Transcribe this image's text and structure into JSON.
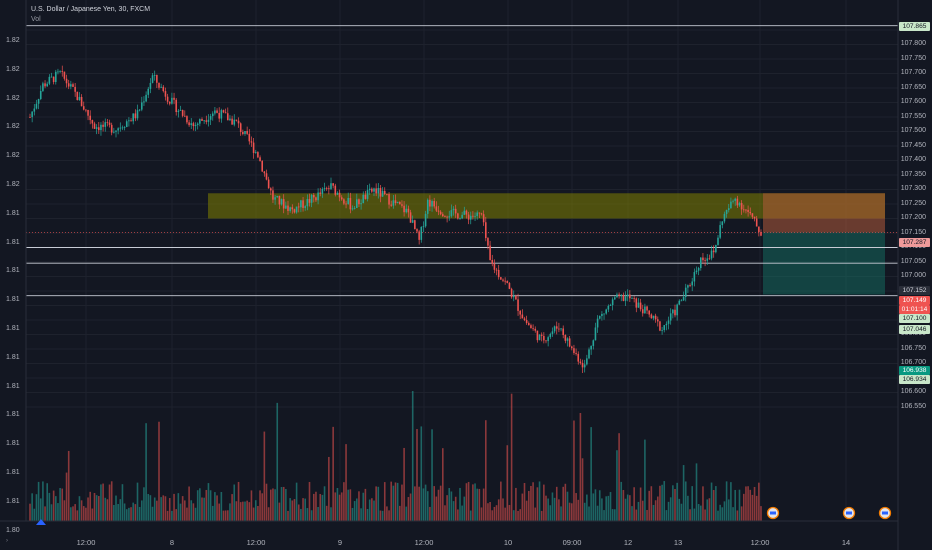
{
  "header": {
    "title": "U.S. Dollar / Japanese Yen, 30, FXCM",
    "volume_label": "Vol"
  },
  "left_axis": {
    "labels": [
      "1.82",
      "1.82",
      "1.82",
      "1.82",
      "1.82",
      "1.82",
      "1.81",
      "1.81",
      "1.81",
      "1.81",
      "1.81",
      "1.81",
      "1.81",
      "1.81",
      "1.81",
      "1.81",
      "1.81",
      "1.80"
    ]
  },
  "price_axis": {
    "labels": [
      "107.850",
      "107.800",
      "107.750",
      "107.700",
      "107.650",
      "107.600",
      "107.550",
      "107.500",
      "107.450",
      "107.400",
      "107.350",
      "107.300",
      "107.250",
      "107.200",
      "107.150",
      "107.100",
      "107.050",
      "107.000",
      "106.950",
      "106.900",
      "106.850",
      "106.800",
      "106.750",
      "106.700",
      "106.650",
      "106.600",
      "106.550"
    ]
  },
  "time_axis": {
    "labels": [
      "12:00",
      "8",
      "12:00",
      "9",
      "12:00",
      "10",
      "09:00",
      "12",
      "13",
      "12:00",
      "14"
    ]
  },
  "tags": [
    {
      "label": "107.865",
      "kind": "line"
    },
    {
      "label": "107.287",
      "kind": "zone"
    },
    {
      "label": "107.152",
      "kind": "current"
    },
    {
      "label": "107.149",
      "kind": "stop"
    },
    {
      "label": "01:01:14",
      "kind": "countdown"
    },
    {
      "label": "107.100",
      "kind": "line"
    },
    {
      "label": "107.046",
      "kind": "line"
    },
    {
      "label": "106.938",
      "kind": "target"
    },
    {
      "label": "106.934",
      "kind": "line"
    }
  ],
  "chart_data": {
    "type": "candlestick",
    "symbol": "USDJPY",
    "interval": "30",
    "y_range": [
      106.52,
      107.89
    ],
    "horizontal_levels": [
      107.865,
      107.1,
      107.046,
      106.934
    ],
    "zones": [
      {
        "kind": "supply",
        "from": 107.2,
        "to": 107.287
      },
      {
        "kind": "short-risk",
        "from": 107.152,
        "to": 107.287
      },
      {
        "kind": "short-reward",
        "from": 106.938,
        "to": 107.152
      }
    ],
    "close_path": [
      [
        0,
        107.55
      ],
      [
        6,
        107.66
      ],
      [
        14,
        107.7
      ],
      [
        22,
        107.62
      ],
      [
        30,
        107.52
      ],
      [
        40,
        107.51
      ],
      [
        50,
        107.56
      ],
      [
        57,
        107.69
      ],
      [
        66,
        107.6
      ],
      [
        76,
        107.52
      ],
      [
        86,
        107.57
      ],
      [
        96,
        107.53
      ],
      [
        106,
        107.42
      ],
      [
        113,
        107.27
      ],
      [
        122,
        107.23
      ],
      [
        132,
        107.27
      ],
      [
        140,
        107.31
      ],
      [
        150,
        107.24
      ],
      [
        160,
        107.3
      ],
      [
        168,
        107.26
      ],
      [
        176,
        107.22
      ],
      [
        181,
        107.12
      ],
      [
        185,
        107.26
      ],
      [
        193,
        107.22
      ],
      [
        204,
        107.21
      ],
      [
        210,
        107.21
      ],
      [
        214,
        107.05
      ],
      [
        222,
        106.97
      ],
      [
        230,
        106.85
      ],
      [
        238,
        106.78
      ],
      [
        246,
        106.83
      ],
      [
        252,
        106.75
      ],
      [
        258,
        106.69
      ],
      [
        264,
        106.85
      ],
      [
        272,
        106.92
      ],
      [
        278,
        106.93
      ],
      [
        286,
        106.88
      ],
      [
        294,
        106.82
      ],
      [
        300,
        106.88
      ],
      [
        306,
        106.96
      ],
      [
        312,
        107.06
      ],
      [
        318,
        107.08
      ],
      [
        322,
        107.2
      ],
      [
        328,
        107.27
      ],
      [
        334,
        107.22
      ],
      [
        340,
        107.15
      ]
    ],
    "note": "x is bar index (30-minute bars); y is price in JPY"
  },
  "markers": [
    {
      "icon": "ideas-icon"
    },
    {
      "icon": "event-flag-icon"
    },
    {
      "icon": "event-flag-icon"
    },
    {
      "icon": "event-flag-icon"
    }
  ]
}
